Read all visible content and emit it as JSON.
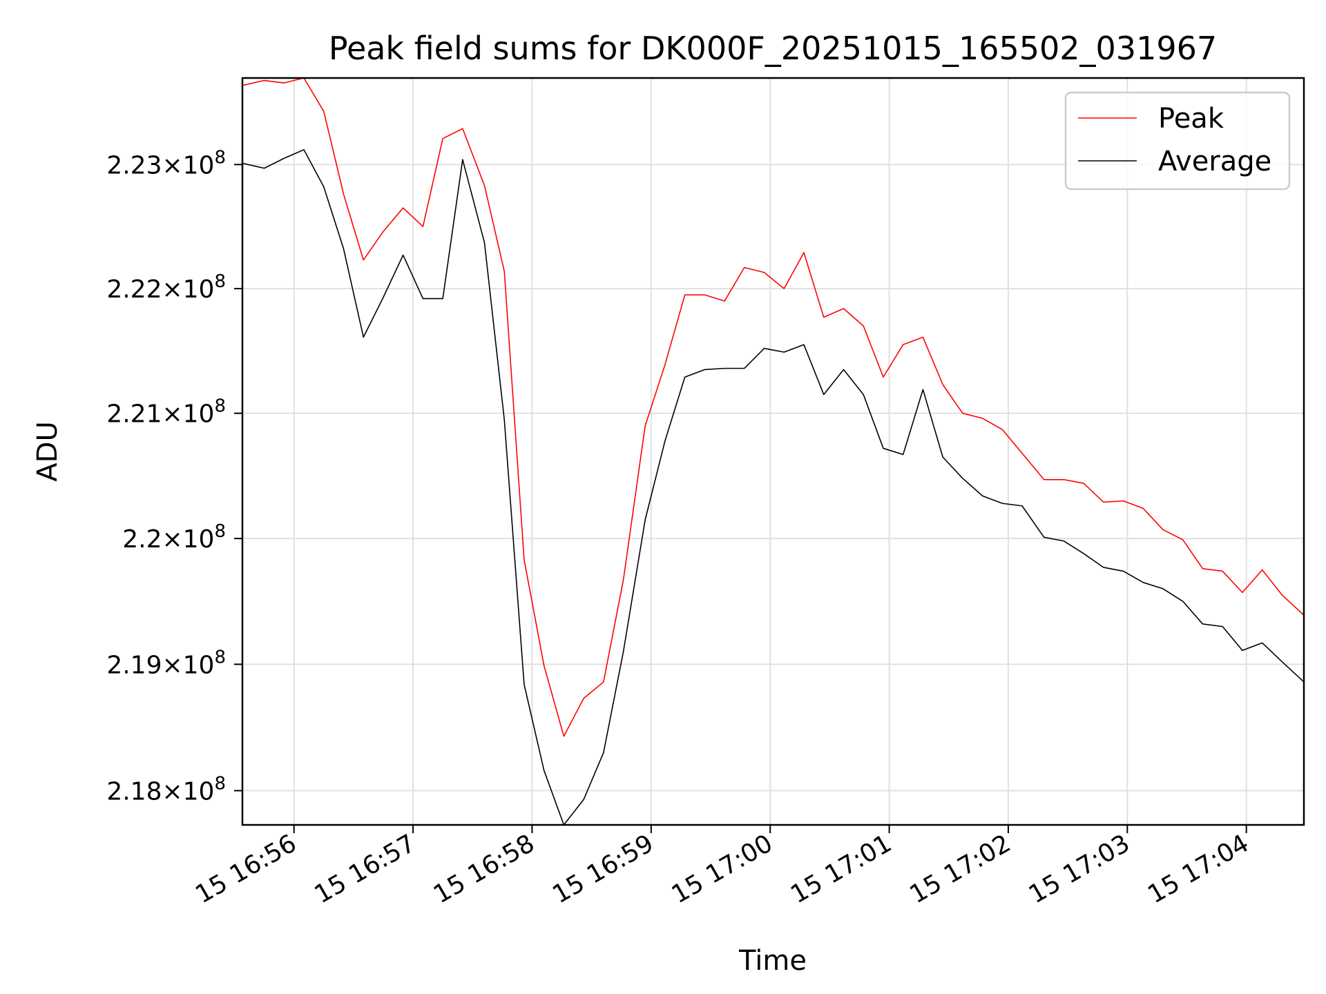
{
  "chart_data": {
    "type": "line",
    "title": "Peak field sums for DK000F_20251015_165502_031967",
    "xlabel": "Time",
    "ylabel": "ADU",
    "xlim": [
      "2025-10-15 16:55:34",
      "2025-10-15 17:04:29"
    ],
    "ylim": [
      217730000,
      223700000
    ],
    "y_scale": "log",
    "grid": true,
    "legend_position": "top-right",
    "x_ticks": [
      {
        "value": "2025-10-15 16:56:00",
        "label": "15 16:56"
      },
      {
        "value": "2025-10-15 16:57:00",
        "label": "15 16:57"
      },
      {
        "value": "2025-10-15 16:58:00",
        "label": "15 16:58"
      },
      {
        "value": "2025-10-15 16:59:00",
        "label": "15 16:59"
      },
      {
        "value": "2025-10-15 17:00:00",
        "label": "15 17:00"
      },
      {
        "value": "2025-10-15 17:01:00",
        "label": "15 17:01"
      },
      {
        "value": "2025-10-15 17:02:00",
        "label": "15 17:02"
      },
      {
        "value": "2025-10-15 17:03:00",
        "label": "15 17:03"
      },
      {
        "value": "2025-10-15 17:04:00",
        "label": "15 17:04"
      }
    ],
    "y_ticks": [
      {
        "value": 218000000,
        "mantissa": "2.18",
        "exponent": "8"
      },
      {
        "value": 219000000,
        "mantissa": "2.19",
        "exponent": "8"
      },
      {
        "value": 220000000,
        "mantissa": "2.2",
        "exponent": "8"
      },
      {
        "value": 221000000,
        "mantissa": "2.21",
        "exponent": "8"
      },
      {
        "value": 222000000,
        "mantissa": "2.22",
        "exponent": "8"
      },
      {
        "value": 223000000,
        "mantissa": "2.23",
        "exponent": "8"
      }
    ],
    "x": [
      "2025-10-15 16:55:34",
      "2025-10-15 16:55:45",
      "2025-10-15 16:55:55",
      "2025-10-15 16:56:05",
      "2025-10-15 16:56:15",
      "2025-10-15 16:56:25",
      "2025-10-15 16:56:35",
      "2025-10-15 16:56:45",
      "2025-10-15 16:56:55",
      "2025-10-15 16:57:05",
      "2025-10-15 16:57:15",
      "2025-10-15 16:57:25",
      "2025-10-15 16:57:36",
      "2025-10-15 16:57:46",
      "2025-10-15 16:57:56",
      "2025-10-15 16:58:06",
      "2025-10-15 16:58:16",
      "2025-10-15 16:58:26",
      "2025-10-15 16:58:36",
      "2025-10-15 16:58:46",
      "2025-10-15 16:58:57",
      "2025-10-15 16:59:07",
      "2025-10-15 16:59:17",
      "2025-10-15 16:59:27",
      "2025-10-15 16:59:37",
      "2025-10-15 16:59:47",
      "2025-10-15 16:59:57",
      "2025-10-15 17:00:07",
      "2025-10-15 17:00:17",
      "2025-10-15 17:00:27",
      "2025-10-15 17:00:37",
      "2025-10-15 17:00:47",
      "2025-10-15 17:00:57",
      "2025-10-15 17:01:07",
      "2025-10-15 17:01:17",
      "2025-10-15 17:01:27",
      "2025-10-15 17:01:37",
      "2025-10-15 17:01:47",
      "2025-10-15 17:01:57",
      "2025-10-15 17:02:07",
      "2025-10-15 17:02:18",
      "2025-10-15 17:02:28",
      "2025-10-15 17:02:38",
      "2025-10-15 17:02:48",
      "2025-10-15 17:02:58",
      "2025-10-15 17:03:08",
      "2025-10-15 17:03:18",
      "2025-10-15 17:03:28",
      "2025-10-15 17:03:38",
      "2025-10-15 17:03:48",
      "2025-10-15 17:03:58",
      "2025-10-15 17:04:08",
      "2025-10-15 17:04:18",
      "2025-10-15 17:04:29"
    ],
    "series": [
      {
        "name": "Peak",
        "color": "#ff0000",
        "values": [
          223640000,
          223680000,
          223660000,
          223700000,
          223430000,
          222760000,
          222230000,
          222460000,
          222650000,
          222500000,
          223210000,
          223290000,
          222830000,
          222140000,
          219830000,
          218990000,
          218430000,
          218730000,
          218860000,
          219670000,
          220900000,
          221390000,
          221950000,
          221950000,
          221900000,
          222170000,
          222130000,
          222000000,
          222290000,
          221770000,
          221840000,
          221700000,
          221290000,
          221550000,
          221610000,
          221230000,
          221000000,
          220960000,
          220870000,
          220680000,
          220470000,
          220470000,
          220440000,
          220290000,
          220300000,
          220240000,
          220070000,
          219990000,
          219760000,
          219740000,
          219570000,
          219750000,
          219550000,
          219390000
        ]
      },
      {
        "name": "Average",
        "color": "#000000",
        "values": [
          223010000,
          222970000,
          223050000,
          223120000,
          222820000,
          222320000,
          221610000,
          221930000,
          222270000,
          221920000,
          221920000,
          223040000,
          222370000,
          220950000,
          218840000,
          218160000,
          217730000,
          217930000,
          218300000,
          219100000,
          220150000,
          220780000,
          221290000,
          221350000,
          221360000,
          221360000,
          221520000,
          221490000,
          221550000,
          221150000,
          221350000,
          221150000,
          220720000,
          220670000,
          221190000,
          220650000,
          220480000,
          220340000,
          220280000,
          220260000,
          220010000,
          219980000,
          219880000,
          219770000,
          219740000,
          219650000,
          219600000,
          219500000,
          219320000,
          219300000,
          219110000,
          219170000,
          219020000,
          218860000
        ]
      }
    ]
  }
}
